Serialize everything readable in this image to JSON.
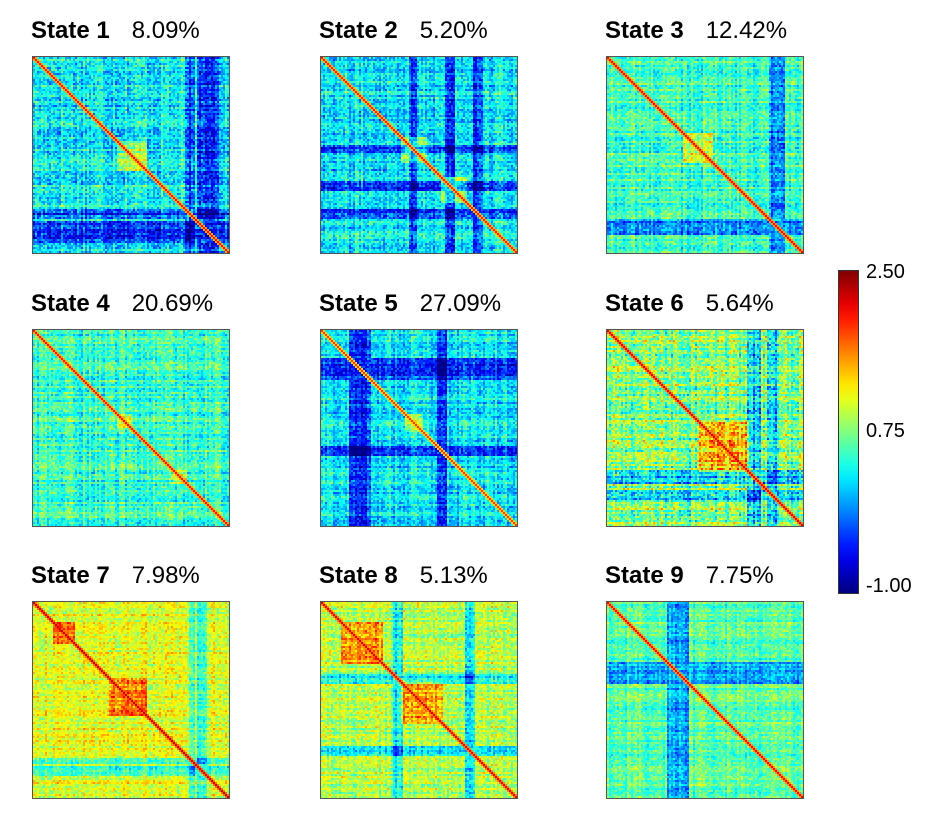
{
  "chart_data": {
    "type": "heatmap",
    "panels": [
      {
        "state": "State 1",
        "percent": "8.09%"
      },
      {
        "state": "State 2",
        "percent": "5.20%"
      },
      {
        "state": "State 3",
        "percent": "12.42%"
      },
      {
        "state": "State 4",
        "percent": "20.69%"
      },
      {
        "state": "State 5",
        "percent": "27.09%"
      },
      {
        "state": "State 6",
        "percent": "5.64%"
      },
      {
        "state": "State 7",
        "percent": "7.98%"
      },
      {
        "state": "State 8",
        "percent": "5.13%"
      },
      {
        "state": "State 9",
        "percent": "7.75%"
      }
    ],
    "colorbar": {
      "colormap": "jet",
      "range": [
        -1.0,
        2.5
      ],
      "tick_labels": [
        "2.50",
        "0.75",
        "-1.00"
      ],
      "tick_values": [
        2.5,
        0.75,
        -1.0
      ]
    }
  }
}
